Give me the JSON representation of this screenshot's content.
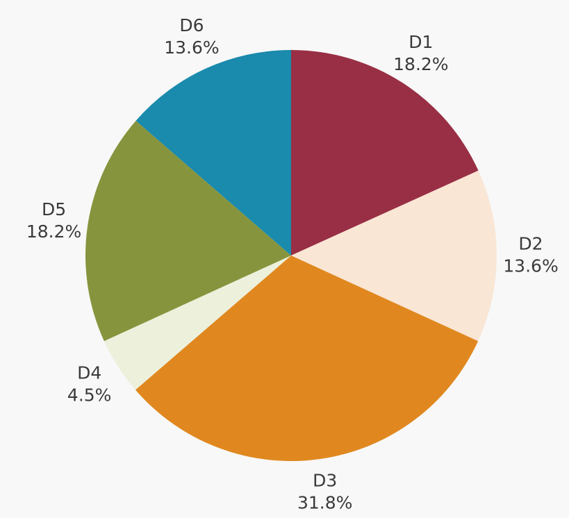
{
  "chart_data": {
    "type": "pie",
    "categories": [
      "D1",
      "D2",
      "D3",
      "D4",
      "D5",
      "D6"
    ],
    "values": [
      18.2,
      13.6,
      31.8,
      4.5,
      18.2,
      13.6
    ],
    "value_labels": [
      "18.2%",
      "13.6%",
      "31.8%",
      "4.5%",
      "18.2%",
      "13.6%"
    ],
    "colors": [
      "#992f45",
      "#f9e6d5",
      "#e0881f",
      "#edf0db",
      "#86953d",
      "#1a8aad"
    ]
  }
}
